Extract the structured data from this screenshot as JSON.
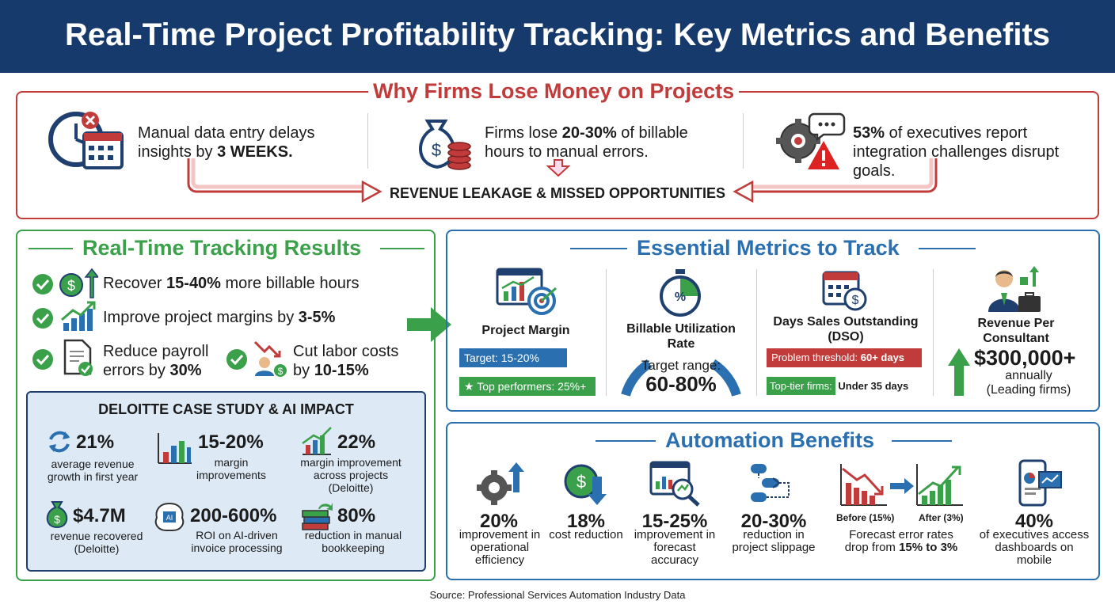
{
  "header": {
    "title": "Real-Time Project Profitability Tracking: Key Metrics and Benefits"
  },
  "why": {
    "title": "Why Firms Lose Money on Projects",
    "items": [
      {
        "pre": "Manual data entry delays insights by ",
        "bold": "3 WEEKS.",
        "post": "",
        "icon": "clock-calendar-icon"
      },
      {
        "pre": "Firms lose ",
        "bold": "20-30%",
        "post": " of billable hours to manual errors.",
        "icon": "money-bag-coins-icon"
      },
      {
        "pre": "",
        "bold": "53%",
        "post": " of executives report integration challenges disrupt goals.",
        "icon": "gear-warning-icon"
      }
    ],
    "result": "REVENUE LEAKAGE & MISSED OPPORTUNITIES"
  },
  "results": {
    "title": "Real-Time Tracking Results",
    "items": [
      {
        "pre": "Recover ",
        "bold": "15-40%",
        "post": " more billable hours"
      },
      {
        "pre": "Improve project margins by ",
        "bold": "3-5%",
        "post": ""
      },
      {
        "pre": "Reduce payroll errors by ",
        "bold": "30%",
        "post": ""
      },
      {
        "pre": "Cut labor costs by ",
        "bold": "10-15%",
        "post": ""
      }
    ]
  },
  "case_study": {
    "title": "DELOITTE CASE STUDY & AI IMPACT",
    "stats": [
      {
        "value": "21%",
        "label": "average revenue growth in first year"
      },
      {
        "value": "15-20%",
        "label": "margin improvements"
      },
      {
        "value": "22%",
        "label": "margin improvement across projects (Deloitte)"
      },
      {
        "value": "$4.7M",
        "label": "revenue recovered (Deloitte)"
      },
      {
        "value": "200-600%",
        "label": "ROI on AI-driven invoice processing"
      },
      {
        "value": "80%",
        "label": "reduction in manual bookkeeping"
      }
    ]
  },
  "metrics": {
    "title": "Essential Metrics to Track",
    "project_margin": {
      "label": "Project Margin",
      "target": "Target: 15-20%",
      "top": "Top performers: 25%+"
    },
    "billable": {
      "label": "Billable Utilization Rate",
      "range_label": "Target range:",
      "range": "60-80%"
    },
    "dso": {
      "label": "Days Sales Outstanding (DSO)",
      "problem": "Problem threshold: ",
      "problem_bold": "60+ days",
      "top": "Top-tier firms:",
      "top_bold": "Under 35 days"
    },
    "revenue": {
      "label": "Revenue Per Consultant",
      "value": "$300,000+",
      "sub": "annually (Leading firms)"
    }
  },
  "automation": {
    "title": "Automation Benefits",
    "stats": [
      {
        "value": "20%",
        "label": "improvement in operational efficiency"
      },
      {
        "value": "18%",
        "label": "cost reduction"
      },
      {
        "value": "15-25%",
        "label": "improvement in forecast accuracy"
      },
      {
        "value": "20-30%",
        "label": "reduction in project slippage"
      },
      {
        "value": "40%",
        "label": "of executives access dashboards on mobile"
      }
    ],
    "forecast": {
      "before": "Before (15%)",
      "after": "After (3%)",
      "text_pre": "Forecast error rates drop from ",
      "text_bold": "15% to 3%"
    }
  },
  "colors": {
    "navy": "#163a6b",
    "red": "#c23b3b",
    "green": "#3aa04a",
    "blue": "#2a6fb0"
  },
  "source": "Source: Professional Services Automation Industry Data"
}
